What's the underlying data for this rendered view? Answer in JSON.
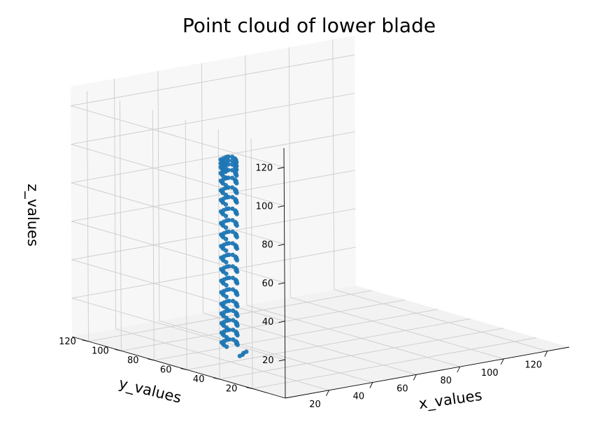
{
  "chart_data": {
    "type": "scatter",
    "projection": "3d",
    "title": "Point cloud of lower blade",
    "xlabel": "x_values",
    "ylabel": "y_values",
    "zlabel": "z_values",
    "xlim": [
      0,
      130
    ],
    "ylim": [
      0,
      130
    ],
    "zlim": [
      0,
      130
    ],
    "xticks": [
      "20",
      "40",
      "60",
      "80",
      "100",
      "120"
    ],
    "yticks": [
      "20",
      "40",
      "60",
      "80",
      "100",
      "120"
    ],
    "zticks": [
      "20",
      "40",
      "60",
      "80",
      "100",
      "120"
    ],
    "grid": true,
    "marker_color": "#1f77b4",
    "points": [
      [
        21,
        54,
        5
      ],
      [
        23,
        56,
        5
      ],
      [
        25,
        57,
        5
      ],
      [
        19,
        53,
        5
      ],
      [
        13,
        53,
        11
      ],
      [
        14,
        56,
        11
      ],
      [
        15,
        58,
        11
      ],
      [
        16,
        60,
        11
      ],
      [
        18,
        61,
        11
      ],
      [
        20,
        62,
        11
      ],
      [
        21,
        62,
        11
      ],
      [
        22,
        61,
        11
      ],
      [
        21,
        58,
        11
      ],
      [
        20,
        56,
        11
      ],
      [
        19,
        55,
        11
      ],
      [
        18,
        53,
        11
      ],
      [
        13,
        53,
        16
      ],
      [
        14,
        56,
        16
      ],
      [
        15,
        58,
        16
      ],
      [
        16,
        60,
        16
      ],
      [
        18,
        61,
        16
      ],
      [
        20,
        62,
        16
      ],
      [
        21,
        62,
        16
      ],
      [
        22,
        61,
        16
      ],
      [
        21,
        58,
        16
      ],
      [
        20,
        56,
        16
      ],
      [
        19,
        55,
        16
      ],
      [
        18,
        53,
        16
      ],
      [
        13,
        53,
        21
      ],
      [
        14,
        56,
        21
      ],
      [
        15,
        58,
        21
      ],
      [
        16,
        60,
        21
      ],
      [
        18,
        61,
        21
      ],
      [
        20,
        62,
        21
      ],
      [
        21,
        62,
        21
      ],
      [
        22,
        61,
        21
      ],
      [
        21,
        58,
        21
      ],
      [
        20,
        56,
        21
      ],
      [
        19,
        55,
        21
      ],
      [
        18,
        53,
        21
      ],
      [
        13,
        53,
        26
      ],
      [
        14,
        56,
        26
      ],
      [
        15,
        58,
        26
      ],
      [
        16,
        60,
        26
      ],
      [
        18,
        61,
        26
      ],
      [
        20,
        62,
        26
      ],
      [
        21,
        62,
        26
      ],
      [
        22,
        61,
        26
      ],
      [
        21,
        58,
        26
      ],
      [
        20,
        56,
        26
      ],
      [
        19,
        55,
        26
      ],
      [
        18,
        53,
        26
      ],
      [
        13,
        53,
        31
      ],
      [
        14,
        56,
        31
      ],
      [
        15,
        58,
        31
      ],
      [
        16,
        60,
        31
      ],
      [
        18,
        61,
        31
      ],
      [
        20,
        62,
        31
      ],
      [
        21,
        62,
        31
      ],
      [
        22,
        61,
        31
      ],
      [
        21,
        58,
        31
      ],
      [
        20,
        56,
        31
      ],
      [
        19,
        55,
        31
      ],
      [
        18,
        53,
        31
      ],
      [
        13,
        53,
        37
      ],
      [
        14,
        56,
        37
      ],
      [
        15,
        58,
        37
      ],
      [
        16,
        60,
        37
      ],
      [
        18,
        61,
        37
      ],
      [
        20,
        62,
        37
      ],
      [
        21,
        62,
        37
      ],
      [
        22,
        61,
        37
      ],
      [
        21,
        58,
        37
      ],
      [
        20,
        56,
        37
      ],
      [
        19,
        55,
        37
      ],
      [
        18,
        53,
        37
      ],
      [
        13,
        53,
        43
      ],
      [
        14,
        56,
        43
      ],
      [
        15,
        58,
        43
      ],
      [
        16,
        60,
        43
      ],
      [
        18,
        61,
        43
      ],
      [
        20,
        62,
        43
      ],
      [
        21,
        62,
        43
      ],
      [
        22,
        61,
        43
      ],
      [
        21,
        58,
        43
      ],
      [
        20,
        56,
        43
      ],
      [
        19,
        55,
        43
      ],
      [
        18,
        53,
        43
      ],
      [
        13,
        53,
        49
      ],
      [
        14,
        56,
        49
      ],
      [
        15,
        58,
        49
      ],
      [
        16,
        60,
        49
      ],
      [
        18,
        61,
        49
      ],
      [
        20,
        62,
        49
      ],
      [
        21,
        62,
        49
      ],
      [
        22,
        61,
        49
      ],
      [
        21,
        58,
        49
      ],
      [
        20,
        56,
        49
      ],
      [
        19,
        55,
        49
      ],
      [
        18,
        53,
        49
      ],
      [
        13,
        53,
        55
      ],
      [
        14,
        56,
        55
      ],
      [
        15,
        58,
        55
      ],
      [
        16,
        60,
        55
      ],
      [
        18,
        61,
        55
      ],
      [
        20,
        62,
        55
      ],
      [
        21,
        62,
        55
      ],
      [
        22,
        61,
        55
      ],
      [
        21,
        58,
        55
      ],
      [
        20,
        56,
        55
      ],
      [
        19,
        55,
        55
      ],
      [
        18,
        53,
        55
      ],
      [
        13,
        53,
        61
      ],
      [
        14,
        56,
        61
      ],
      [
        15,
        58,
        61
      ],
      [
        16,
        60,
        61
      ],
      [
        18,
        61,
        61
      ],
      [
        20,
        62,
        61
      ],
      [
        21,
        62,
        61
      ],
      [
        22,
        61,
        61
      ],
      [
        21,
        58,
        61
      ],
      [
        20,
        56,
        61
      ],
      [
        19,
        55,
        61
      ],
      [
        18,
        53,
        61
      ],
      [
        13,
        53,
        67
      ],
      [
        14,
        56,
        67
      ],
      [
        15,
        58,
        67
      ],
      [
        16,
        60,
        67
      ],
      [
        18,
        61,
        67
      ],
      [
        20,
        62,
        67
      ],
      [
        21,
        62,
        67
      ],
      [
        22,
        61,
        67
      ],
      [
        21,
        58,
        67
      ],
      [
        20,
        56,
        67
      ],
      [
        19,
        55,
        67
      ],
      [
        18,
        53,
        67
      ],
      [
        13,
        53,
        73
      ],
      [
        14,
        56,
        73
      ],
      [
        15,
        58,
        73
      ],
      [
        16,
        60,
        73
      ],
      [
        18,
        61,
        73
      ],
      [
        20,
        62,
        73
      ],
      [
        21,
        62,
        73
      ],
      [
        22,
        61,
        73
      ],
      [
        21,
        58,
        73
      ],
      [
        20,
        56,
        73
      ],
      [
        19,
        55,
        73
      ],
      [
        18,
        53,
        73
      ],
      [
        13,
        53,
        79
      ],
      [
        14,
        56,
        79
      ],
      [
        15,
        58,
        79
      ],
      [
        16,
        60,
        79
      ],
      [
        18,
        61,
        79
      ],
      [
        20,
        62,
        79
      ],
      [
        21,
        62,
        79
      ],
      [
        22,
        61,
        79
      ],
      [
        21,
        58,
        79
      ],
      [
        20,
        56,
        79
      ],
      [
        19,
        55,
        79
      ],
      [
        18,
        53,
        79
      ],
      [
        13,
        53,
        85
      ],
      [
        14,
        56,
        85
      ],
      [
        15,
        58,
        85
      ],
      [
        16,
        60,
        85
      ],
      [
        18,
        61,
        85
      ],
      [
        20,
        62,
        85
      ],
      [
        21,
        62,
        85
      ],
      [
        22,
        61,
        85
      ],
      [
        21,
        58,
        85
      ],
      [
        20,
        56,
        85
      ],
      [
        19,
        55,
        85
      ],
      [
        18,
        53,
        85
      ],
      [
        13,
        53,
        90
      ],
      [
        14,
        56,
        90
      ],
      [
        15,
        58,
        90
      ],
      [
        16,
        60,
        90
      ],
      [
        18,
        61,
        90
      ],
      [
        20,
        62,
        90
      ],
      [
        21,
        62,
        90
      ],
      [
        22,
        61,
        90
      ],
      [
        21,
        58,
        90
      ],
      [
        20,
        56,
        90
      ],
      [
        19,
        55,
        90
      ],
      [
        18,
        53,
        90
      ],
      [
        13,
        53,
        95
      ],
      [
        14,
        56,
        95
      ],
      [
        15,
        58,
        95
      ],
      [
        16,
        60,
        95
      ],
      [
        18,
        61,
        95
      ],
      [
        20,
        62,
        95
      ],
      [
        21,
        62,
        95
      ],
      [
        22,
        61,
        95
      ],
      [
        21,
        58,
        95
      ],
      [
        20,
        56,
        95
      ],
      [
        19,
        55,
        95
      ],
      [
        18,
        53,
        95
      ],
      [
        13,
        53,
        99
      ],
      [
        14,
        56,
        99
      ],
      [
        15,
        58,
        99
      ],
      [
        16,
        60,
        99
      ],
      [
        18,
        61,
        99
      ],
      [
        20,
        62,
        99
      ],
      [
        21,
        62,
        99
      ],
      [
        22,
        61,
        99
      ],
      [
        21,
        58,
        99
      ],
      [
        20,
        56,
        99
      ],
      [
        19,
        55,
        99
      ],
      [
        18,
        53,
        99
      ],
      [
        13,
        53,
        102
      ],
      [
        14,
        56,
        102
      ],
      [
        15,
        58,
        102
      ],
      [
        16,
        60,
        102
      ],
      [
        18,
        61,
        102
      ],
      [
        20,
        62,
        102
      ],
      [
        21,
        62,
        102
      ],
      [
        22,
        61,
        102
      ],
      [
        21,
        58,
        102
      ],
      [
        20,
        56,
        102
      ],
      [
        19,
        55,
        102
      ],
      [
        18,
        53,
        102
      ],
      [
        13,
        53,
        104
      ],
      [
        14,
        56,
        104
      ],
      [
        15,
        58,
        104
      ],
      [
        16,
        60,
        104
      ],
      [
        18,
        61,
        104
      ],
      [
        20,
        62,
        104
      ],
      [
        21,
        62,
        104
      ],
      [
        22,
        61,
        104
      ],
      [
        21,
        58,
        104
      ],
      [
        20,
        56,
        104
      ],
      [
        19,
        55,
        104
      ],
      [
        18,
        53,
        104
      ],
      [
        13,
        53,
        106
      ],
      [
        14,
        56,
        106
      ],
      [
        15,
        58,
        106
      ],
      [
        16,
        60,
        106
      ],
      [
        18,
        61,
        106
      ],
      [
        20,
        62,
        106
      ],
      [
        21,
        62,
        106
      ],
      [
        22,
        61,
        106
      ],
      [
        21,
        58,
        106
      ],
      [
        20,
        56,
        106
      ],
      [
        19,
        55,
        106
      ],
      [
        18,
        53,
        106
      ]
    ]
  }
}
